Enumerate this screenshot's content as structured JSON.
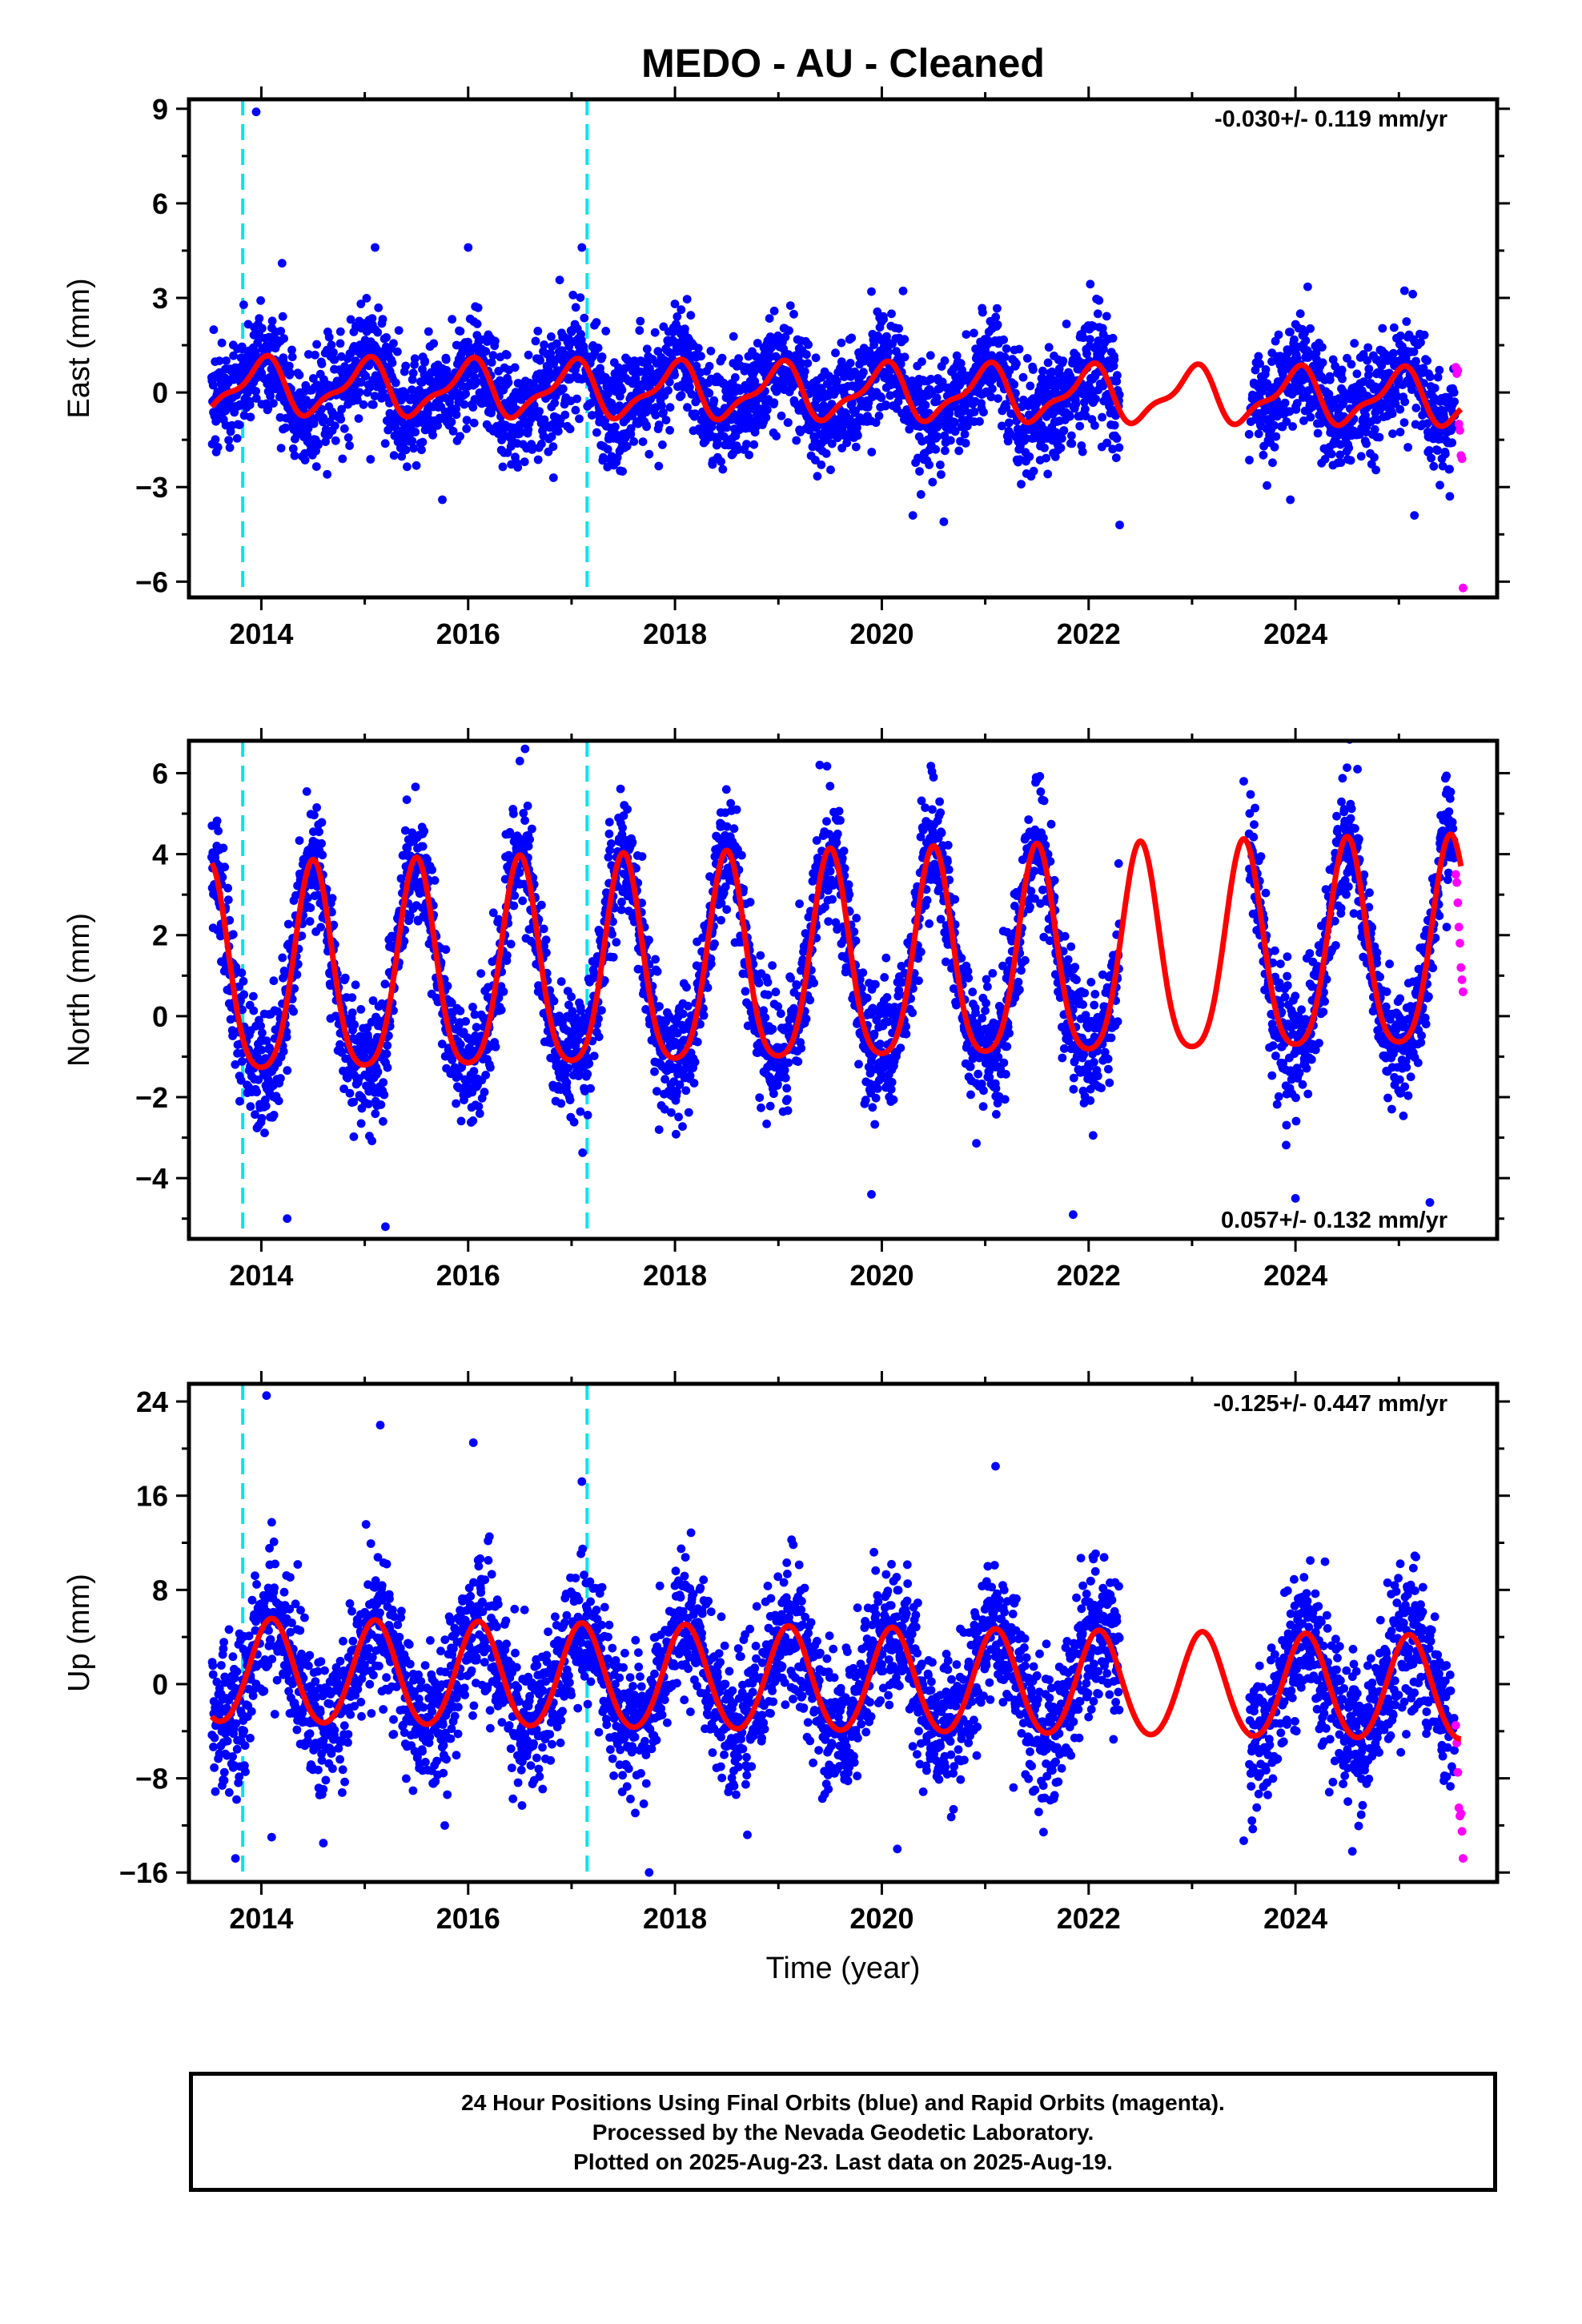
{
  "title": "MEDO  - AU - Cleaned",
  "colors": {
    "final_orbits": "#0000ff",
    "rapid_orbits": "#ff00ff",
    "model": "#ff0000",
    "equipment_change": "#00e5ee",
    "frame": "#000000"
  },
  "footer": {
    "line1": "24 Hour Positions Using Final Orbits (blue) and Rapid Orbits (magenta).",
    "line2": "Processed by the Nevada Geodetic Laboratory.",
    "line3": "Plotted on 2025-Aug-23. Last data on 2025-Aug-19."
  },
  "chart_data": [
    {
      "type": "scatter",
      "component": "east",
      "ylabel": "East (mm)",
      "xlabel": "",
      "xlim": [
        2013.3,
        2025.95
      ],
      "ylim": [
        -6.5,
        9.3
      ],
      "xticks": [
        2014,
        2016,
        2018,
        2020,
        2022,
        2024
      ],
      "yticks": [
        -6,
        -3,
        0,
        3,
        6,
        9
      ],
      "rate_label": "-0.030+/- 0.119 mm/yr",
      "rate_position": "top-right",
      "equipment_changes": [
        2013.82,
        2017.15
      ],
      "data_gap": [
        2022.3,
        2023.55
      ],
      "model": {
        "offset": 0.0,
        "trend": -0.03,
        "ref_year": 2019.5,
        "annual_amp": 0.8,
        "annual_phase_peak": 2014.0,
        "semiannual_amp": 0.3,
        "semiannual_phase_peak": 2014.1,
        "trend_piece": 0.8,
        "decay": 0.15
      },
      "series": [
        {
          "name": "Final Orbits",
          "color": "#0000ff",
          "scatter_sd": 0.85,
          "extremes": [
            [
              2013.95,
              8.9
            ],
            [
              2014.2,
              4.1
            ],
            [
              2015.1,
              4.6
            ],
            [
              2016.0,
              4.6
            ],
            [
              2017.1,
              4.6
            ],
            [
              2019.9,
              3.2
            ],
            [
              2015.75,
              -3.4
            ],
            [
              2020.3,
              -3.9
            ],
            [
              2020.6,
              -4.1
            ],
            [
              2022.3,
              -4.2
            ],
            [
              2025.15,
              -3.9
            ],
            [
              2023.95,
              -3.4
            ]
          ]
        },
        {
          "name": "Rapid Orbits",
          "color": "#ff00ff",
          "x": [
            2025.55,
            2025.56,
            2025.57,
            2025.58,
            2025.59,
            2025.6,
            2025.61,
            2025.62
          ],
          "y": [
            0.8,
            0.6,
            0.7,
            -1.0,
            -1.2,
            -2.0,
            -2.1,
            -6.2
          ]
        }
      ]
    },
    {
      "type": "scatter",
      "component": "north",
      "ylabel": "North (mm)",
      "xlabel": "",
      "xlim": [
        2013.3,
        2025.95
      ],
      "ylim": [
        -5.5,
        6.8
      ],
      "xticks": [
        2014,
        2016,
        2018,
        2020,
        2022,
        2024
      ],
      "yticks": [
        -4,
        -2,
        0,
        2,
        4,
        6
      ],
      "rate_label": "0.057+/- 0.132 mm/yr",
      "rate_position": "bottom-right",
      "equipment_changes": [
        2013.82,
        2017.15
      ],
      "data_gap": [
        2022.3,
        2023.55
      ],
      "model": {
        "offset": 1.15,
        "trend": 0.057,
        "ref_year": 2019.5,
        "annual_amp": 2.55,
        "annual_phase_peak": 2014.5,
        "semiannual_amp": 0.45,
        "semiannual_phase_peak": 2014.5,
        "trend_piece": 0.0,
        "decay": 0.15
      },
      "series": [
        {
          "name": "Final Orbits",
          "color": "#0000ff",
          "scatter_sd": 0.75,
          "extremes": [
            [
              2016.55,
              6.6
            ],
            [
              2016.5,
              6.3
            ],
            [
              2019.4,
              6.2
            ],
            [
              2020.5,
              5.9
            ],
            [
              2023.5,
              5.8
            ],
            [
              2024.6,
              6.1
            ],
            [
              2015.2,
              -5.2
            ],
            [
              2014.25,
              -5.0
            ],
            [
              2019.9,
              -4.4
            ],
            [
              2021.85,
              -4.9
            ],
            [
              2025.3,
              -4.6
            ],
            [
              2024.0,
              -4.5
            ]
          ]
        },
        {
          "name": "Rapid Orbits",
          "color": "#ff00ff",
          "x": [
            2025.55,
            2025.56,
            2025.57,
            2025.58,
            2025.59,
            2025.6,
            2025.61,
            2025.62
          ],
          "y": [
            3.5,
            3.3,
            2.8,
            2.2,
            1.8,
            1.2,
            0.9,
            0.6
          ]
        }
      ]
    },
    {
      "type": "scatter",
      "component": "up",
      "ylabel": "Up (mm)",
      "xlabel": "Time (year)",
      "xlim": [
        2013.3,
        2025.95
      ],
      "ylim": [
        -16.8,
        25.5
      ],
      "xticks": [
        2014,
        2016,
        2018,
        2020,
        2022,
        2024
      ],
      "yticks": [
        -16,
        -8,
        0,
        8,
        16,
        24
      ],
      "rate_label": "-0.125+/- 0.447 mm/yr",
      "rate_position": "top-right",
      "equipment_changes": [
        2013.82,
        2017.15
      ],
      "data_gap": [
        2022.3,
        2023.55
      ],
      "model": {
        "offset": 0.2,
        "trend": -0.125,
        "ref_year": 2019.5,
        "annual_amp": 4.4,
        "annual_phase_peak": 2014.1,
        "semiannual_amp": 0.3,
        "semiannual_phase_peak": 2014.1,
        "trend_piece": 0.0,
        "decay": 0.15
      },
      "series": [
        {
          "name": "Final Orbits",
          "color": "#0000ff",
          "scatter_sd": 3.0,
          "extremes": [
            [
              2014.05,
              24.5
            ],
            [
              2015.15,
              22.0
            ],
            [
              2016.05,
              20.5
            ],
            [
              2017.1,
              17.2
            ],
            [
              2021.1,
              18.5
            ],
            [
              2013.75,
              -14.8
            ],
            [
              2014.1,
              -13.0
            ],
            [
              2014.6,
              -13.5
            ],
            [
              2017.75,
              -16.0
            ],
            [
              2018.7,
              -12.8
            ],
            [
              2020.15,
              -14.0
            ],
            [
              2023.5,
              -13.3
            ],
            [
              2024.55,
              -14.2
            ]
          ]
        },
        {
          "name": "Rapid Orbits",
          "color": "#ff00ff",
          "x": [
            2025.55,
            2025.56,
            2025.57,
            2025.58,
            2025.59,
            2025.6,
            2025.61,
            2025.62
          ],
          "y": [
            -3.5,
            -5.0,
            -7.5,
            -10.5,
            -11.2,
            -11.0,
            -12.5,
            -14.8
          ]
        }
      ]
    }
  ]
}
